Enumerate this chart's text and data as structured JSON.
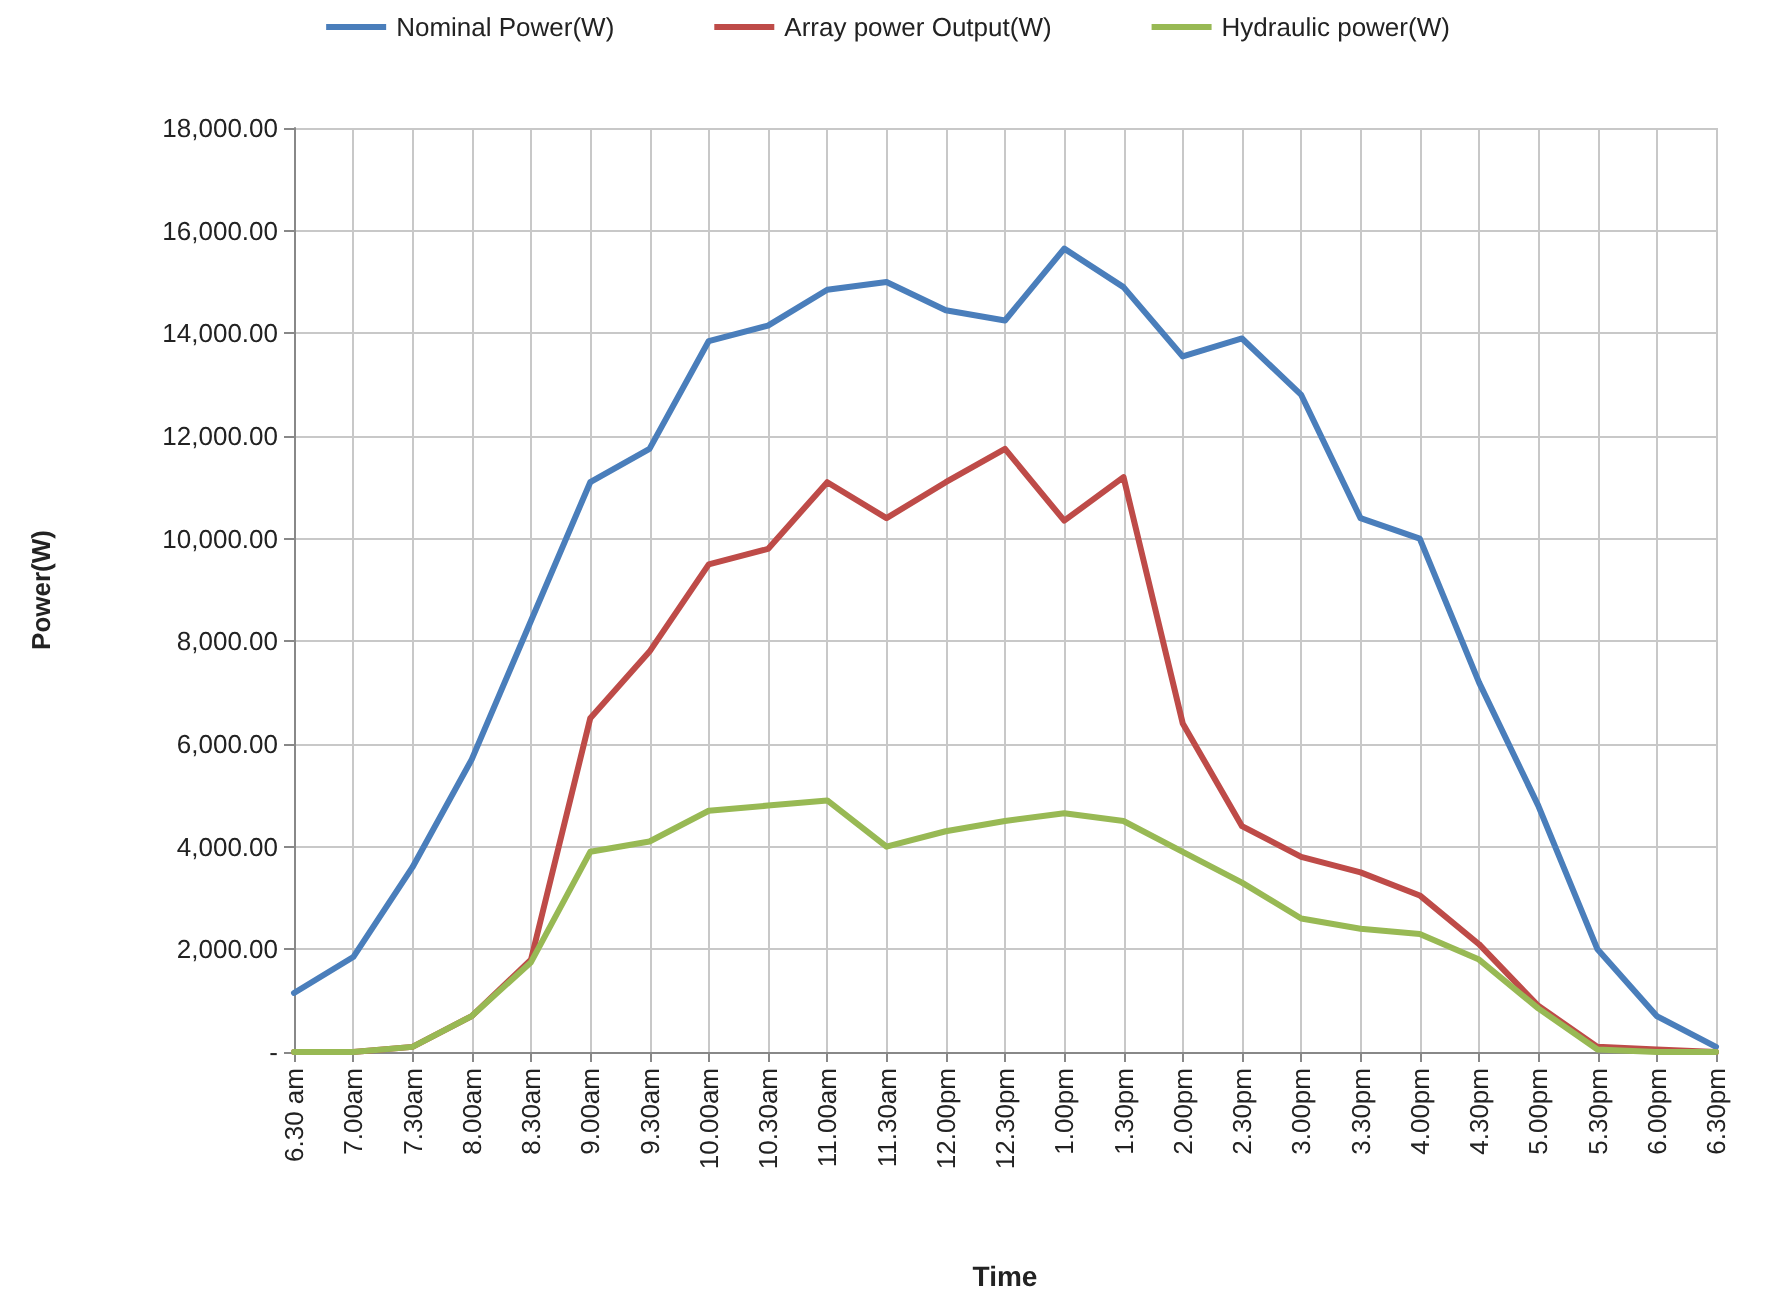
{
  "chart_data": {
    "type": "line",
    "xlabel": "Time",
    "ylabel": "Power(W)",
    "categories": [
      "6.30 am",
      "7.00am",
      "7.30am",
      "8.00am",
      "8.30am",
      "9.00am",
      "9.30am",
      "10.00am",
      "10.30am",
      "11.00am",
      "11.30am",
      "12.00pm",
      "12.30pm",
      "1.00pm",
      "1.30pm",
      "2.00pm",
      "2.30pm",
      "3.00pm",
      "3.30pm",
      "4.00pm",
      "4.30pm",
      "5.00pm",
      "5.30pm",
      "6.00pm",
      "6.30pm"
    ],
    "series": [
      {
        "name": "Nominal Power(W)",
        "color": "#4a7ebb",
        "values": [
          1150,
          1850,
          3600,
          5700,
          8400,
          11100,
          11750,
          13850,
          14150,
          14850,
          15000,
          14450,
          14250,
          15650,
          14900,
          13550,
          13900,
          12800,
          10400,
          10000,
          7200,
          4800,
          2000,
          700,
          100
        ]
      },
      {
        "name": "Array power Output(W)",
        "color": "#be4b48",
        "values": [
          0,
          0,
          100,
          700,
          1800,
          6500,
          7800,
          9500,
          9800,
          11100,
          10400,
          11100,
          11750,
          10350,
          11200,
          6400,
          4400,
          3800,
          3500,
          3050,
          2100,
          900,
          100,
          50,
          0
        ]
      },
      {
        "name": "Hydraulic power(W)",
        "color": "#98b954",
        "values": [
          0,
          0,
          100,
          700,
          1750,
          3900,
          4100,
          4700,
          4800,
          4900,
          4000,
          4300,
          4500,
          4650,
          4500,
          3900,
          3300,
          2600,
          2400,
          2300,
          1800,
          850,
          50,
          0,
          0
        ]
      }
    ],
    "ylim": [
      0,
      18000
    ],
    "yticks": [
      {
        "value": 0,
        "label": "-"
      },
      {
        "value": 2000,
        "label": "2,000.00"
      },
      {
        "value": 4000,
        "label": "4,000.00"
      },
      {
        "value": 6000,
        "label": "6,000.00"
      },
      {
        "value": 8000,
        "label": "8,000.00"
      },
      {
        "value": 10000,
        "label": "10,000.00"
      },
      {
        "value": 12000,
        "label": "12,000.00"
      },
      {
        "value": 14000,
        "label": "14,000.00"
      },
      {
        "value": 16000,
        "label": "16,000.00"
      },
      {
        "value": 18000,
        "label": "18,000.00"
      }
    ],
    "grid": true,
    "legend": "top",
    "marker": "none",
    "line_style": "solid"
  }
}
